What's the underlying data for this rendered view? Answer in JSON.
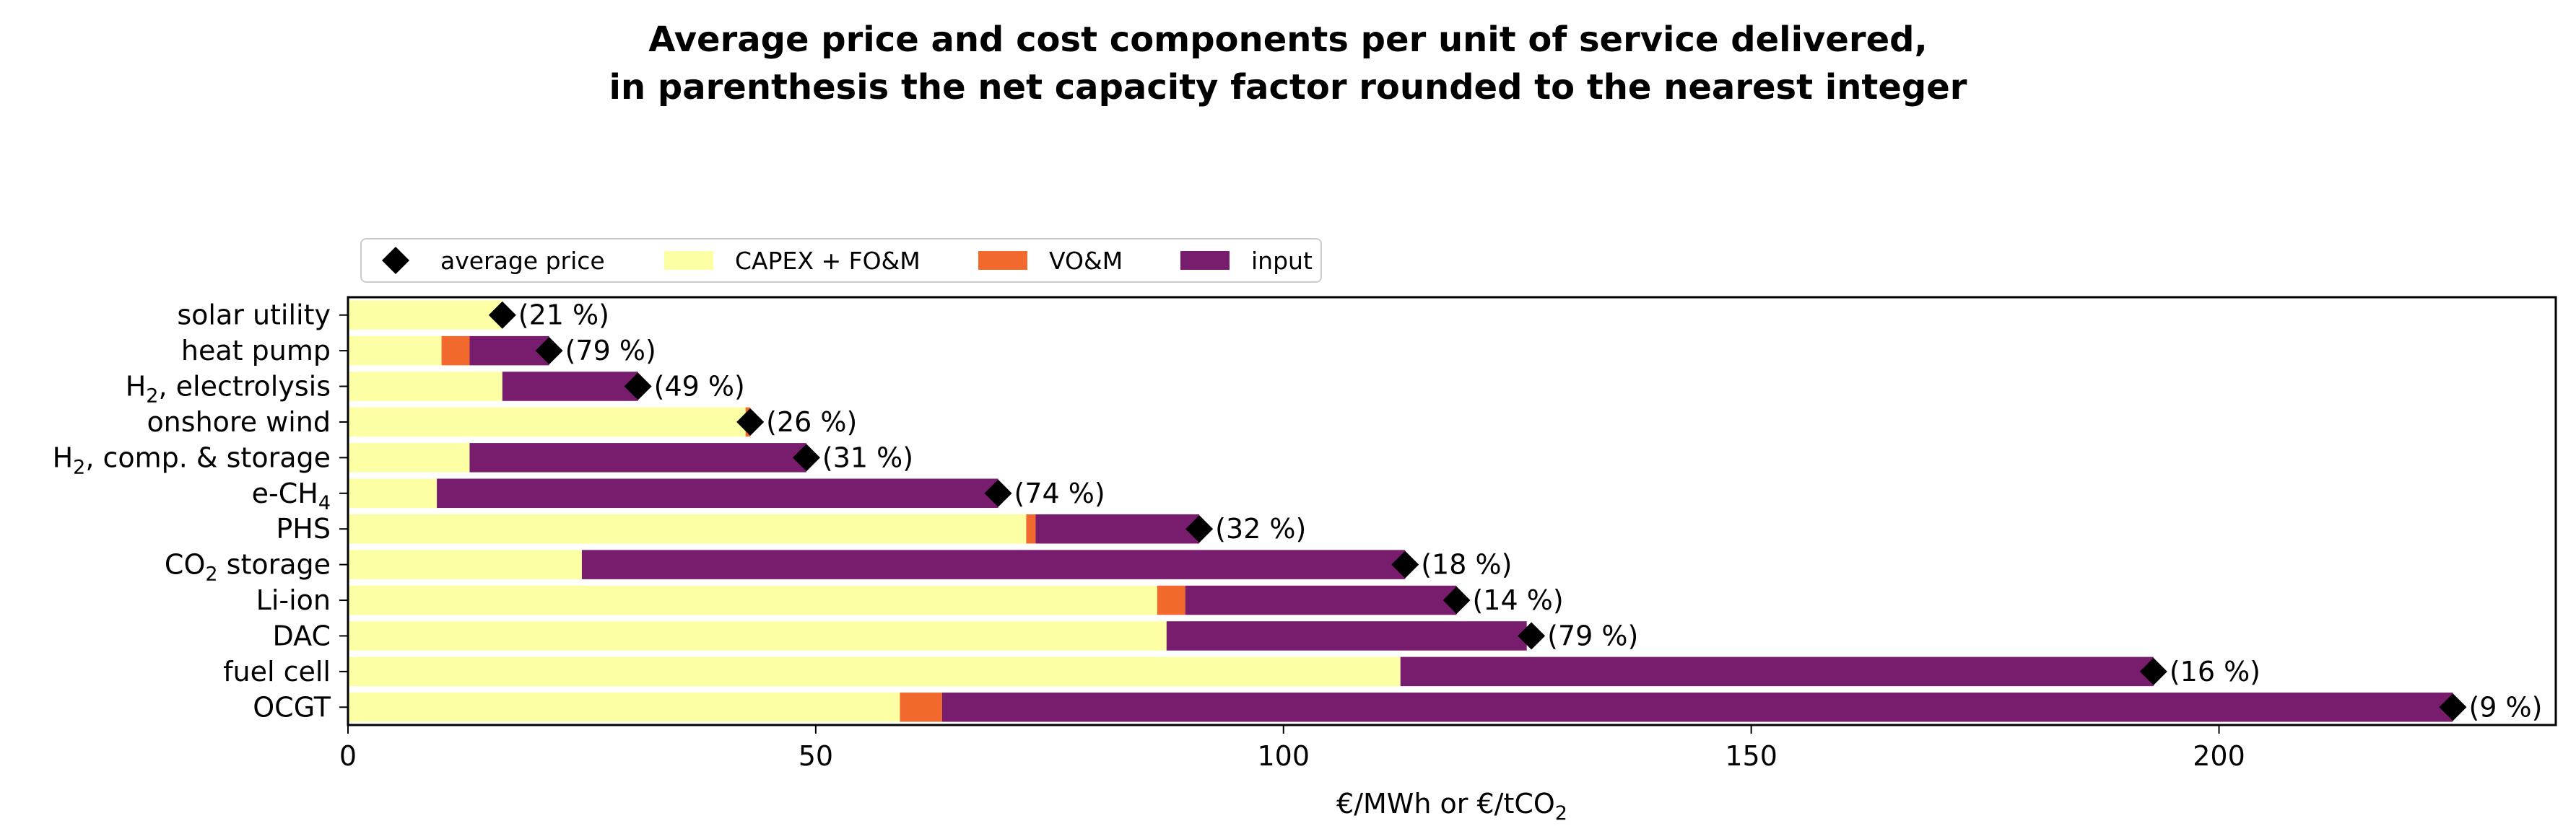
{
  "chart_data": {
    "type": "bar",
    "orientation": "horizontal",
    "stacked": true,
    "title_lines": [
      "Average price and cost components per unit of service delivered,",
      "in parenthesis the net capacity factor rounded to the nearest integer"
    ],
    "xlabel": "€/MWh or €/tCO",
    "xlabel_sub": "2",
    "xlim": [
      0,
      236
    ],
    "xticks": [
      0,
      50,
      100,
      150,
      200
    ],
    "grid": false,
    "legend_position": "top-left, above plot",
    "legend": {
      "marker_label": "average price",
      "series_labels": [
        "CAPEX + FO&M",
        "VO&M",
        "input"
      ]
    },
    "categories": [
      {
        "base": "solar utility",
        "sub": "",
        "tail": ""
      },
      {
        "base": "heat pump",
        "sub": "",
        "tail": ""
      },
      {
        "base": "H",
        "sub": "2",
        "tail": ", electrolysis"
      },
      {
        "base": "onshore wind",
        "sub": "",
        "tail": ""
      },
      {
        "base": "H",
        "sub": "2",
        "tail": ", comp. & storage"
      },
      {
        "base": "e-CH",
        "sub": "4",
        "tail": ""
      },
      {
        "base": "PHS",
        "sub": "",
        "tail": ""
      },
      {
        "base": "CO",
        "sub": "2",
        "tail": " storage"
      },
      {
        "base": "Li-ion",
        "sub": "",
        "tail": ""
      },
      {
        "base": "DAC",
        "sub": "",
        "tail": ""
      },
      {
        "base": "fuel cell",
        "sub": "",
        "tail": ""
      },
      {
        "base": "OCGT",
        "sub": "",
        "tail": ""
      }
    ],
    "series": [
      {
        "name": "CAPEX + FO&M",
        "color": "#fcffa4",
        "values": [
          16.5,
          10.0,
          16.5,
          42.5,
          13.0,
          9.5,
          72.5,
          25.0,
          86.5,
          87.5,
          112.5,
          59.0
        ]
      },
      {
        "name": "VO&M",
        "color": "#f1692c",
        "values": [
          0,
          3.0,
          0,
          0.5,
          0,
          0,
          1.0,
          0,
          3.0,
          0,
          0,
          4.5
        ]
      },
      {
        "name": "input",
        "color": "#781c6d",
        "values": [
          0,
          8.5,
          14.5,
          0,
          36.0,
          60.0,
          17.5,
          88.0,
          29.0,
          38.5,
          80.5,
          161.5
        ]
      }
    ],
    "average_price": {
      "name": "average price",
      "color": "#000000",
      "values": [
        16.5,
        21.5,
        31.0,
        43.0,
        49.0,
        69.5,
        91.0,
        113.0,
        118.5,
        126.5,
        193.0,
        225.0
      ]
    },
    "annotations": [
      "(21 %)",
      "(79 %)",
      "(49 %)",
      "(26 %)",
      "(31 %)",
      "(74 %)",
      "(32 %)",
      "(18 %)",
      "(14 %)",
      "(79 %)",
      "(16 %)",
      "(9 %)"
    ]
  }
}
